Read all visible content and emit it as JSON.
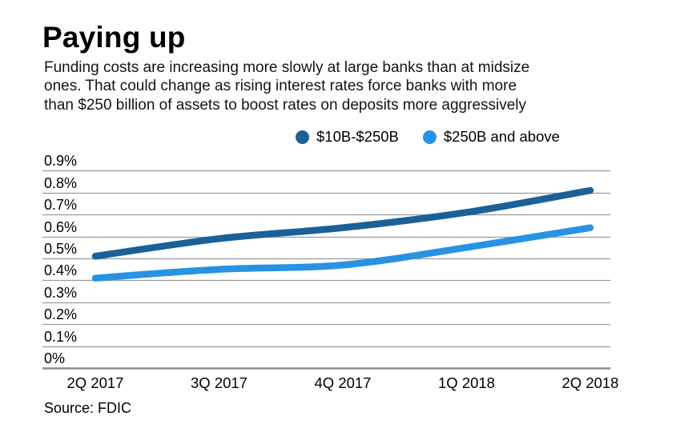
{
  "header": {
    "title": "Paying up",
    "subtitle_lines": [
      "Funding costs are increasing more slowly at large banks than at midsize",
      "ones. That could change as rising interest rates force banks with more",
      "than $250 billion of assets to boost rates on deposits more aggressively"
    ]
  },
  "legend": {
    "items": [
      {
        "label": "$10B-$250B",
        "color": "#1b6096"
      },
      {
        "label": "$250B and above",
        "color": "#2793e2"
      }
    ]
  },
  "chart_data": {
    "type": "line",
    "title": "Paying up",
    "categories": [
      "2Q 2017",
      "3Q 2017",
      "4Q 2017",
      "1Q 2018",
      "2Q 2018"
    ],
    "series": [
      {
        "name": "$10B-$250B",
        "color": "#1b6096",
        "values": [
          0.51,
          0.59,
          0.64,
          0.71,
          0.81
        ]
      },
      {
        "name": "$250B and above",
        "color": "#2793e2",
        "values": [
          0.41,
          0.45,
          0.47,
          0.55,
          0.64
        ]
      }
    ],
    "y_ticks": [
      "0.9%",
      "0.8%",
      "0.7%",
      "0.6%",
      "0.5%",
      "0.4%",
      "0.3%",
      "0.2%",
      "0.1%",
      "0%"
    ],
    "ylim": [
      0,
      0.9
    ],
    "xlabel": "",
    "ylabel": "",
    "grid": true,
    "legend_position": "top",
    "grid_color": "#9a9a9a",
    "axis_color": "#8c8c8c"
  },
  "source": {
    "text": "Source: FDIC"
  }
}
